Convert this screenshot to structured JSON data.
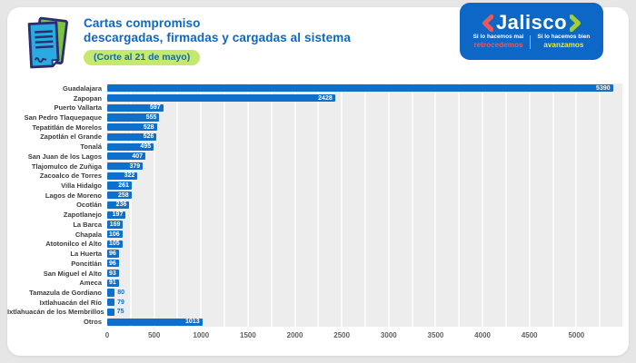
{
  "header": {
    "title_line1": "Cartas compromiso",
    "title_line2": "descargadas, firmadas y cargadas al sistema",
    "badge": "(Corte al 21 de mayo)"
  },
  "logo": {
    "name": "Jalisco",
    "tagline_left_top": "Si lo hacemos mal",
    "tagline_left_bottom": "retrocedemos",
    "tagline_right_top": "Si lo hacemos bien",
    "tagline_right_bottom": "avanzamos"
  },
  "colors": {
    "page_bg": "#e6e6e6",
    "accent_blue": "#0d67c6",
    "bar_blue": "#0f70cb",
    "badge_green": "#c5e96e",
    "logo_red": "#f2545e",
    "logo_green": "#a4ce39",
    "logo_yellow": "#e8eb41",
    "plot_bg": "#ededed"
  },
  "chart_data": {
    "type": "bar",
    "orientation": "horizontal",
    "title": "Cartas compromiso descargadas, firmadas y cargadas al sistema",
    "subtitle": "(Corte al 21 de mayo)",
    "categories": [
      "Guadalajara",
      "Zapopan",
      "Puerto Vallarta",
      "San Pedro Tlaquepaque",
      "Tepatitlán de Morelos",
      "Zapotlán el Grande",
      "Tonalá",
      "San Juan de los Lagos",
      "Tlajomulco de Zuñiga",
      "Zacoalco de Torres",
      "Villa Hidalgo",
      "Lagos de Moreno",
      "Ocotlán",
      "Zapotlanejo",
      "La Barca",
      "Chapala",
      "Atotonilco el Alto",
      "La Huerta",
      "Poncitlán",
      "San Miguel el Alto",
      "Ameca",
      "Tamazula de Gordiano",
      "Ixtlahuacán del Río",
      "Ixtlahuacán de los Membrillos",
      "Otros"
    ],
    "values": [
      5390,
      2428,
      597,
      555,
      528,
      526,
      495,
      407,
      379,
      322,
      261,
      258,
      236,
      197,
      169,
      106,
      105,
      96,
      96,
      93,
      91,
      80,
      79,
      75,
      1013
    ],
    "xlabel": "",
    "ylabel": "",
    "xlim": [
      0,
      5500
    ],
    "xticks": [
      0,
      500,
      1000,
      1500,
      2000,
      2500,
      3000,
      3500,
      4000,
      4500,
      5000
    ],
    "gridline_step": 250,
    "grid": true,
    "legend": false,
    "bar_color": "#0f70cb",
    "inside_label_min_value": 85
  }
}
